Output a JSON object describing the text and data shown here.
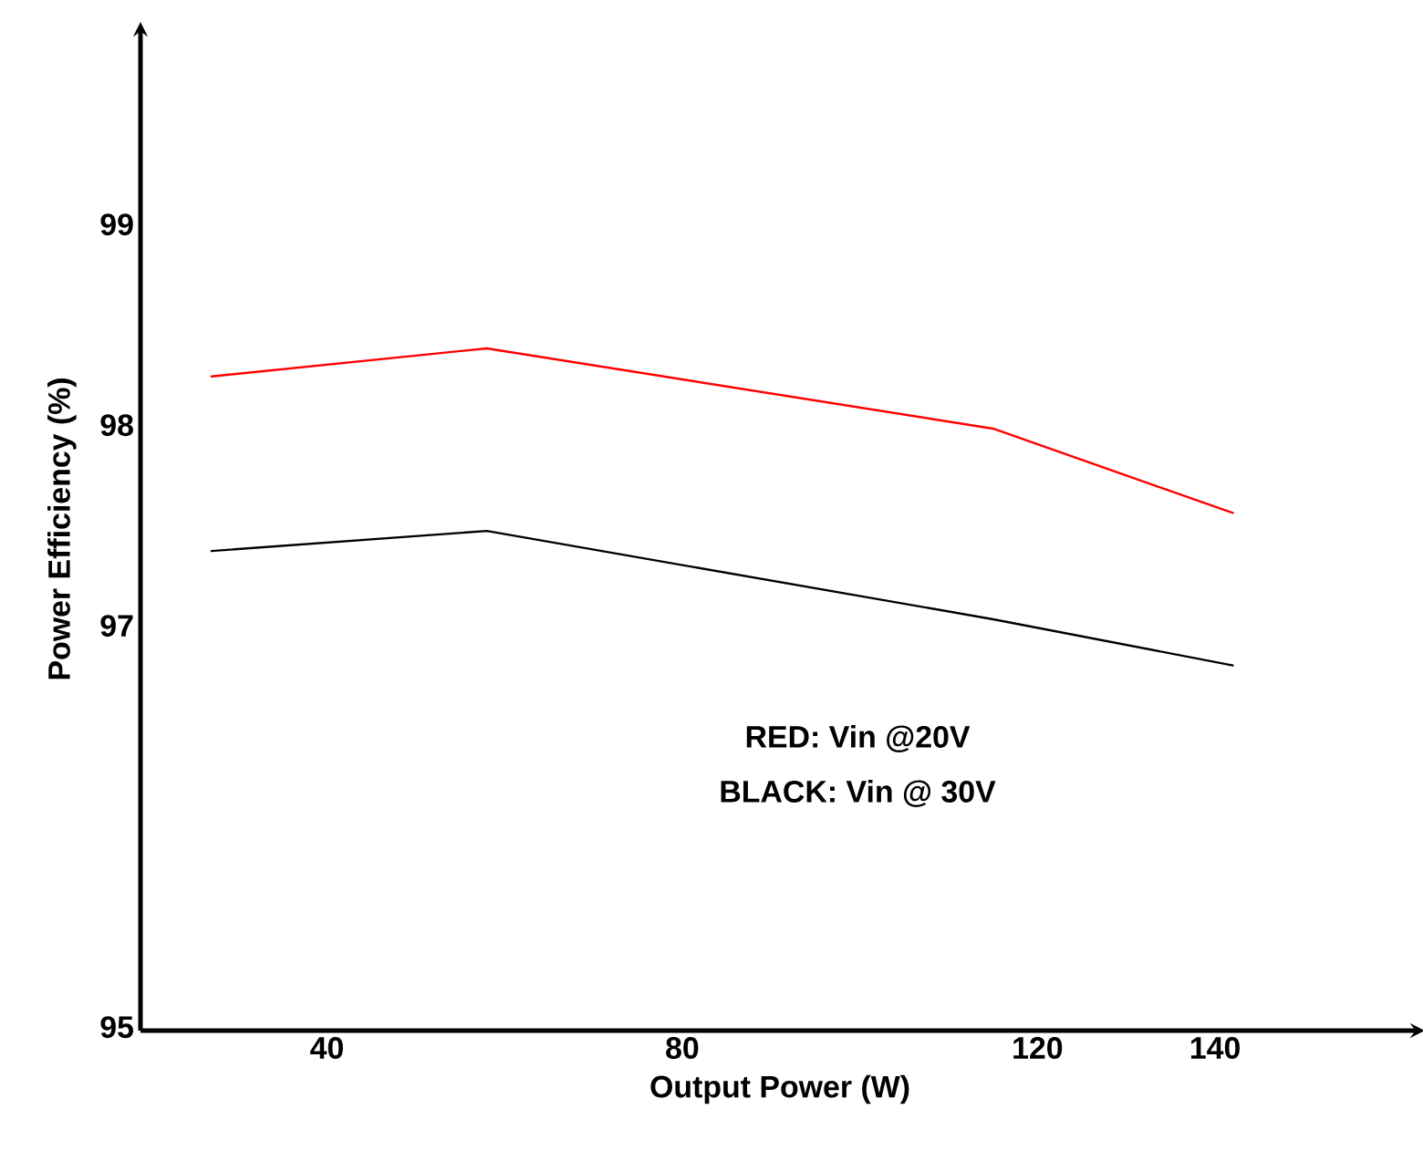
{
  "chart_data": {
    "type": "line",
    "xlabel": "Output Power (W)",
    "ylabel": "Power Efficiency (%)",
    "x": [
      27,
      58,
      115,
      142
    ],
    "series": [
      {
        "color": "#ff0000",
        "values": [
          98.26,
          98.4,
          98.0,
          97.58
        ]
      },
      {
        "color": "#000000",
        "values": [
          97.39,
          97.49,
          97.05,
          96.82
        ]
      }
    ],
    "xlim": [
      19,
      163
    ],
    "ylim": [
      95,
      100
    ],
    "xticks": [
      40,
      80,
      120,
      140
    ],
    "yticks": [
      95,
      97,
      98,
      99
    ],
    "annotations": [
      "RED: Vin @20V",
      "BLACK: Vin @ 30V"
    ],
    "grid": false,
    "marker": "none",
    "line_style": "solid"
  }
}
